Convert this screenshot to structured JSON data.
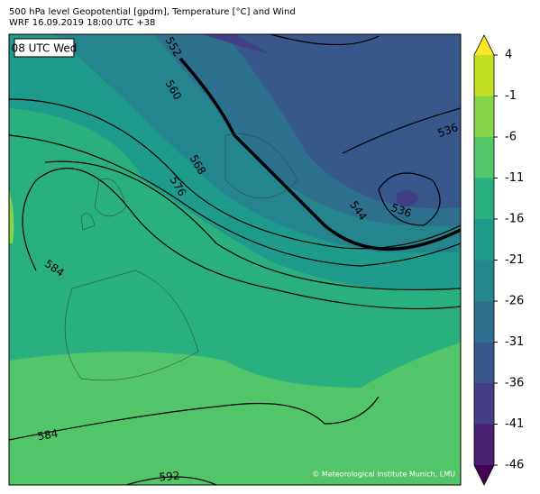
{
  "header": {
    "title": "500 hPa level Geopotential [gpdm], Temperature [°C] and Wind",
    "subtitle": "WRF 16.09.2019 18:00 UTC +38"
  },
  "map": {
    "time_label": "08 UTC Wed",
    "contour_labels": [
      "552",
      "560",
      "568",
      "576",
      "584",
      "544",
      "536",
      "536",
      "584",
      "592"
    ],
    "credit": "© Meteorological Institute Munich, LMU"
  },
  "colorbar": {
    "ticks": [
      -46,
      -41,
      -36,
      -31,
      -26,
      -21,
      -16,
      -11,
      -6,
      -1,
      4
    ],
    "colors": [
      "#482173",
      "#433e85",
      "#38588c",
      "#2d708e",
      "#25858e",
      "#1e9b8a",
      "#2ab07f",
      "#52c569",
      "#86d549",
      "#c2df23"
    ],
    "extend_low_color": "#440154",
    "extend_high_color": "#fde725"
  }
}
